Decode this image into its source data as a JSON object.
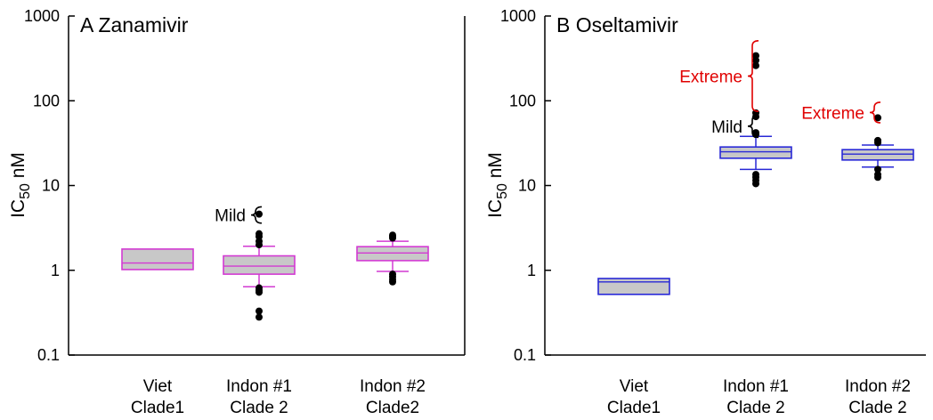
{
  "chart_data": [
    {
      "type": "box",
      "title": "A Zanamivir",
      "ylabel_main": "IC",
      "ylabel_sub": "50",
      "ylabel_unit": " nM",
      "yscale": "log",
      "ylim": [
        0.1,
        1000
      ],
      "yticks": [
        "0.1",
        "1",
        "10",
        "100",
        "1000"
      ],
      "grid": false,
      "colors": {
        "box_edge": "#d23ad2",
        "box_fill": "#c8c8c8",
        "points": "#000000"
      },
      "categories": [
        {
          "line1": "Viet",
          "line2": "Clade1"
        },
        {
          "line1": "Indon #1",
          "line2": "Clade 2"
        },
        {
          "line1": "Indon #2",
          "line2": "Clade2"
        }
      ],
      "boxes": [
        {
          "q1": 1.02,
          "median": 1.22,
          "q3": 1.78,
          "whisker_low": null,
          "whisker_high": null,
          "outliers": []
        },
        {
          "q1": 0.9,
          "median": 1.12,
          "q3": 1.48,
          "whisker_low": 0.64,
          "whisker_high": 1.92,
          "outliers": [
            0.28,
            0.33,
            0.55,
            0.58,
            0.62,
            2.0,
            2.2,
            2.5,
            2.7,
            4.6
          ]
        },
        {
          "q1": 1.3,
          "median": 1.6,
          "q3": 1.9,
          "whisker_low": 0.97,
          "whisker_high": 2.2,
          "outliers": [
            0.73,
            0.78,
            0.84,
            0.9,
            2.4,
            2.5,
            2.6
          ]
        }
      ],
      "annotations": [
        {
          "text": "Mild",
          "color": "#000000",
          "category": 1,
          "y_low": 3.6,
          "y_high": 5.6
        }
      ]
    },
    {
      "type": "box",
      "title": "B Oseltamivir",
      "ylabel_main": "IC",
      "ylabel_sub": "50",
      "ylabel_unit": " nM",
      "yscale": "log",
      "ylim": [
        0.1,
        1000
      ],
      "yticks": [
        "0.1",
        "1",
        "10",
        "100",
        "1000"
      ],
      "grid": false,
      "colors": {
        "box_edge": "#2929d6",
        "box_fill": "#c8c8c8",
        "points": "#000000"
      },
      "categories": [
        {
          "line1": "Viet",
          "line2": "Clade1"
        },
        {
          "line1": "Indon #1",
          "line2": "Clade 2"
        },
        {
          "line1": "Indon #2",
          "line2": "Clade 2"
        }
      ],
      "boxes": [
        {
          "q1": 0.52,
          "median": 0.73,
          "q3": 0.8,
          "whisker_low": null,
          "whisker_high": null,
          "outliers": []
        },
        {
          "q1": 21,
          "median": 25,
          "q3": 28.5,
          "whisker_low": 15.5,
          "whisker_high": 38,
          "outliers": [
            10.5,
            11.5,
            12.5,
            13.5,
            40,
            42,
            65,
            72,
            260,
            300,
            340
          ]
        },
        {
          "q1": 20,
          "median": 23.5,
          "q3": 26.5,
          "whisker_low": 16.5,
          "whisker_high": 30,
          "outliers": [
            12.5,
            13.5,
            15.5,
            32,
            34,
            63
          ]
        }
      ],
      "annotations": [
        {
          "text": "Mild",
          "color": "#000000",
          "category": 1,
          "y_low": 37,
          "y_high": 68
        },
        {
          "text": "Extreme",
          "color": "#e00000",
          "category": 1,
          "y_low": 75,
          "y_high": 510
        },
        {
          "text": "Extreme",
          "color": "#e00000",
          "category": 2,
          "y_low": 55,
          "y_high": 96
        }
      ]
    }
  ]
}
